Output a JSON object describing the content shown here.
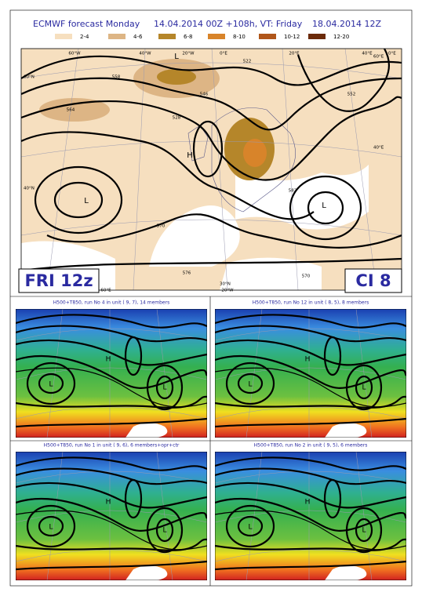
{
  "header": {
    "title_left": "ECMWF forecast Monday",
    "title_mid": "14.04.2014 00Z +108h, VT: Friday",
    "title_right": "18.04.2014 12Z"
  },
  "legend": [
    {
      "label": "2-4",
      "color": "#f6dfbf"
    },
    {
      "label": "4-6",
      "color": "#ddb585"
    },
    {
      "label": "6-8",
      "color": "#b5862a"
    },
    {
      "label": "8-10",
      "color": "#d8842a"
    },
    {
      "label": "10-12",
      "color": "#b0561a"
    },
    {
      "label": "12-20",
      "color": "#6b2a0a"
    }
  ],
  "main_map": {
    "lon_labels": [
      "60°W",
      "40°W",
      "20°W",
      "0°E",
      "20°E",
      "40°E",
      "60°E",
      "20°W",
      "0°E"
    ],
    "lat_labels": [
      "60°N",
      "40°N",
      "60°E",
      "40°E",
      "30°N"
    ],
    "contour_labels": [
      "522",
      "546",
      "570",
      "552",
      "528",
      "582",
      "558",
      "576",
      "570",
      "564"
    ],
    "pressure_labels": [
      "H",
      "L",
      "L",
      "L"
    ],
    "time_label": "FRI 12z",
    "ci_label": "CI 8"
  },
  "panels": [
    {
      "title": "H500+T850, run No 4 in unit ( 9, 7), 14 members",
      "pressure_labels": [
        "H",
        "L",
        "L"
      ]
    },
    {
      "title": "H500+T850, run No 12 in unit ( 8, 5), 8 members",
      "pressure_labels": [
        "H",
        "L",
        "L"
      ]
    },
    {
      "title": "H500+T850, run No 1 in unit ( 9, 6), 6 members+opr+ctr",
      "pressure_labels": [
        "H",
        "L",
        "L"
      ]
    },
    {
      "title": "H500+T850, run No 2 in unit ( 9, 5), 6 members",
      "pressure_labels": [
        "H",
        "L",
        "L"
      ]
    }
  ]
}
